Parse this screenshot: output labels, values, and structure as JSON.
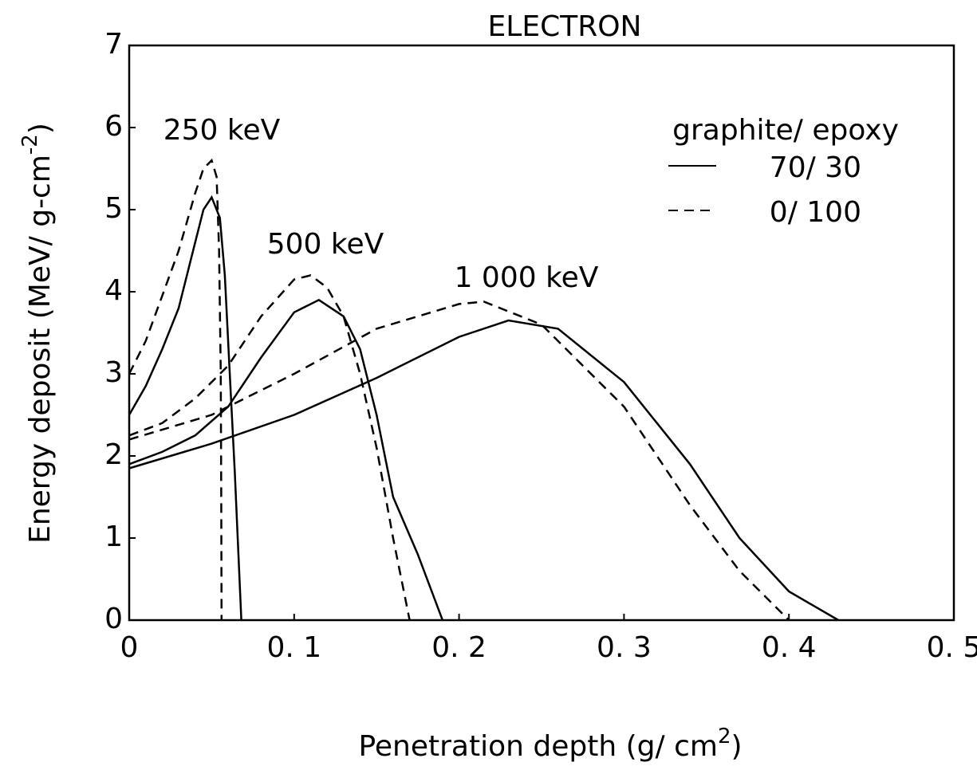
{
  "chart_data": {
    "type": "line",
    "title": "ELECTRON",
    "xlabel": [
      "Penetration depth (g/ cm",
      "2",
      ")"
    ],
    "ylabel": [
      "Energy deposit (MeV/ g-cm",
      "-2",
      ")"
    ],
    "xlim": [
      0,
      0.5
    ],
    "ylim": [
      0,
      7
    ],
    "xticks": [
      0,
      {
        "value": 0.1,
        "label": "0. 1"
      },
      {
        "value": 0.2,
        "label": "0. 2"
      },
      {
        "value": 0.3,
        "label": "0. 3"
      },
      {
        "value": 0.4,
        "label": "0. 4"
      },
      {
        "value": 0.5,
        "label": "0. 5"
      }
    ],
    "yticks": [
      0,
      1,
      2,
      3,
      4,
      5,
      6,
      7
    ],
    "color": "#000000",
    "legend": {
      "title": "graphite/ epoxy",
      "entries": [
        {
          "name": "70/ 30",
          "style": "solid"
        },
        {
          "name": "0/ 100",
          "style": "dashed"
        }
      ]
    },
    "groups": [
      {
        "label": "250 keV",
        "series": [
          {
            "style": "solid",
            "x": [
              0,
              0.01,
              0.02,
              0.03,
              0.04,
              0.045,
              0.05,
              0.055,
              0.058,
              0.061,
              0.064,
              0.066,
              0.068
            ],
            "values": [
              2.5,
              2.85,
              3.3,
              3.8,
              4.6,
              5.0,
              5.15,
              4.9,
              4.2,
              3.0,
              1.8,
              0.9,
              0
            ]
          },
          {
            "style": "dashed",
            "x": [
              0,
              0.01,
              0.02,
              0.03,
              0.04,
              0.045,
              0.05,
              0.053,
              0.0545,
              0.0555,
              0.0558,
              0.056
            ],
            "values": [
              3.0,
              3.4,
              3.95,
              4.5,
              5.2,
              5.5,
              5.6,
              5.4,
              4.5,
              3.0,
              1.5,
              0
            ]
          }
        ]
      },
      {
        "label": "500 keV",
        "series": [
          {
            "style": "solid",
            "x": [
              0,
              0.02,
              0.04,
              0.06,
              0.08,
              0.1,
              0.115,
              0.13,
              0.14,
              0.15,
              0.16,
              0.175,
              0.19
            ],
            "values": [
              1.9,
              2.05,
              2.25,
              2.6,
              3.2,
              3.75,
              3.9,
              3.7,
              3.3,
              2.5,
              1.5,
              0.8,
              0
            ]
          },
          {
            "style": "dashed",
            "x": [
              0,
              0.02,
              0.04,
              0.06,
              0.08,
              0.1,
              0.11,
              0.12,
              0.13,
              0.14,
              0.15,
              0.16,
              0.17
            ],
            "values": [
              2.25,
              2.4,
              2.7,
              3.1,
              3.7,
              4.15,
              4.2,
              4.05,
              3.7,
              3.0,
              2.1,
              1.0,
              0
            ]
          }
        ]
      },
      {
        "label": "1 000 keV",
        "series": [
          {
            "style": "solid",
            "x": [
              0,
              0.05,
              0.1,
              0.15,
              0.2,
              0.23,
              0.26,
              0.3,
              0.34,
              0.37,
              0.4,
              0.43
            ],
            "values": [
              1.85,
              2.15,
              2.5,
              2.95,
              3.45,
              3.65,
              3.55,
              2.9,
              1.9,
              1.0,
              0.35,
              0
            ]
          },
          {
            "style": "dashed",
            "x": [
              0,
              0.05,
              0.1,
              0.15,
              0.2,
              0.215,
              0.25,
              0.3,
              0.34,
              0.37,
              0.4
            ],
            "values": [
              2.2,
              2.5,
              3.0,
              3.55,
              3.85,
              3.88,
              3.6,
              2.6,
              1.4,
              0.6,
              0
            ]
          }
        ]
      }
    ]
  }
}
